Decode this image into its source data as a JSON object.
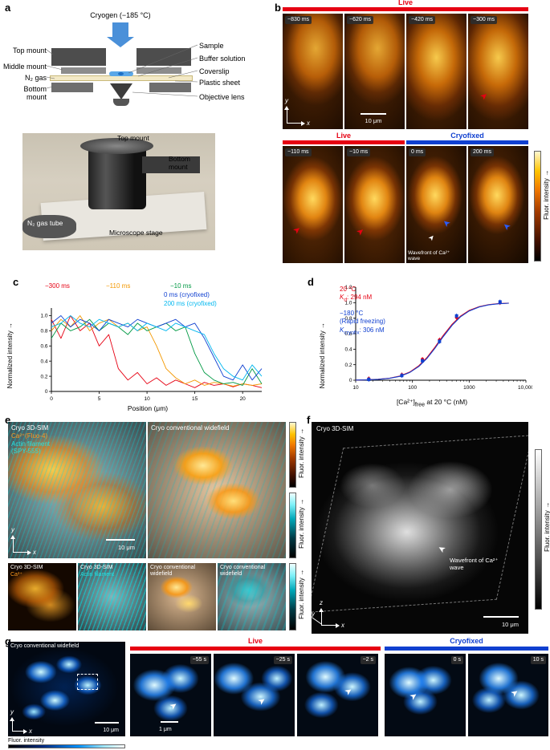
{
  "colors": {
    "live": "#e60012",
    "cryofixed": "#1040d0",
    "ca_orange": "#ff9a1e",
    "actin_cyan": "#28e0e0",
    "cryo_arrow_blue": "#4a90d9"
  },
  "panel_a": {
    "label": "a",
    "cryogen": "Cryogen (−185 °C)",
    "left_labels": [
      "Top mount",
      "Middle mount",
      "N₂ gas",
      "Bottom mount"
    ],
    "right_labels": [
      "Sample",
      "Buffer solution",
      "Coverslip",
      "Plastic sheet"
    ],
    "objective": "Objective lens",
    "photo": {
      "top": "Top mount",
      "bottom": "Bottom mount",
      "n2": "N₂ gas tube",
      "stage": "Microscope stage"
    }
  },
  "panel_b": {
    "label": "b",
    "live": "Live",
    "cryofixed": "Cryofixed",
    "times_row1": [
      "−830 ms",
      "−620 ms",
      "−420 ms",
      "−300 ms"
    ],
    "times_row2": [
      "−110 ms",
      "−10 ms",
      "0 ms",
      "200 ms"
    ],
    "scale": "10 μm",
    "wavefront": "Wavefront of Ca²⁺ wave",
    "colorbar": "Fluor. intensity",
    "ax": {
      "x": "x",
      "y": "y"
    }
  },
  "panel_c": {
    "label": "c"
  },
  "panel_d": {
    "label": "d",
    "red_title": "20 °C",
    "red_k": "K",
    "red_k_sub": "d",
    "red_k_val": ": 294 nM",
    "blue_title": "−180 °C",
    "blue_sub": "(Rapid freezing)",
    "blue_k": "K",
    "blue_k_sub": "cryofix",
    "blue_k_val": ": 306 nM",
    "xlabel_main": "[Ca²⁺]",
    "xlabel_sub": "free",
    "xlabel_end": " at 20 °C (nM)"
  },
  "panel_e": {
    "label": "e",
    "t1_title": "Cryo 3D-SIM",
    "t1_ca": "Ca²⁺(Fluo-4)",
    "t1_actin1": "Actin filament",
    "t1_actin2": "(SPY-555)",
    "t2_title": "Cryo conventional widefield",
    "s1_title": "Cryo 3D-SIM",
    "s1_tag": "Ca²⁺",
    "s2_title": "Cryo 3D-SIM",
    "s2_tag": "Actin filament",
    "s3_title": "Cryo conventional widefield",
    "s4_title": "Cryo conventional widefield",
    "scale": "10 μm",
    "colorbar": "Fluor. intensity",
    "ax": {
      "x": "x",
      "y": "y"
    }
  },
  "panel_f": {
    "label": "f",
    "title": "Cryo 3D-SIM",
    "wavefront": "Wavefront of Ca²⁺ wave",
    "scale": "10 μm",
    "colorbar": "Fluor. intensity",
    "ax": {
      "x": "x",
      "y": "y",
      "z": "z"
    }
  },
  "panel_g": {
    "label": "g",
    "title": "Cryo conventional widefield",
    "live": "Live",
    "cryofixed": "Cryofixed",
    "times": [
      "−55 s",
      "−25 s",
      "−2 s",
      "0 s",
      "10 s"
    ],
    "scale10": "10 μm",
    "scale1": "1 μm",
    "colorbar": "Fluor. intensity",
    "ax": {
      "x": "x",
      "y": "y"
    }
  },
  "chart_data": [
    {
      "type": "line",
      "title": "",
      "xlabel": "Position (μm)",
      "ylabel": "Normalized intensity",
      "xlim": [
        0,
        22
      ],
      "ylim": [
        0,
        1.1
      ],
      "xticks": [
        0,
        5,
        10,
        15,
        20
      ],
      "yticks": [
        0,
        0.2,
        0.4,
        0.6,
        0.8,
        1.0
      ],
      "grid": false,
      "legend_position": "top",
      "x": [
        0,
        1,
        2,
        3,
        4,
        5,
        6,
        7,
        8,
        9,
        10,
        11,
        12,
        13,
        14,
        15,
        16,
        17,
        18,
        19,
        20,
        21,
        22
      ],
      "series": [
        {
          "name": "−300 ms",
          "color": "#e60012",
          "values": [
            0.95,
            0.7,
            1.0,
            0.8,
            0.9,
            0.6,
            0.75,
            0.3,
            0.15,
            0.25,
            0.1,
            0.18,
            0.08,
            0.15,
            0.1,
            0.05,
            0.12,
            0.08,
            0.1,
            0.06,
            0.1,
            0.08,
            0.05
          ]
        },
        {
          "name": "−110 ms",
          "color": "#f39800",
          "values": [
            0.8,
            0.95,
            0.85,
            1.0,
            0.8,
            0.9,
            0.95,
            0.85,
            0.9,
            0.8,
            0.85,
            0.6,
            0.3,
            0.18,
            0.1,
            0.15,
            0.08,
            0.12,
            0.1,
            0.07,
            0.1,
            0.08,
            0.1
          ]
        },
        {
          "name": "−10 ms",
          "color": "#009944",
          "values": [
            0.7,
            0.9,
            0.8,
            0.85,
            0.95,
            0.8,
            0.9,
            0.85,
            0.75,
            0.9,
            0.8,
            0.85,
            0.9,
            0.8,
            0.85,
            0.5,
            0.25,
            0.15,
            0.1,
            0.12,
            0.08,
            0.3,
            0.1
          ]
        },
        {
          "name": "0 ms (cryofixed)",
          "color": "#1040d0",
          "values": [
            0.9,
            1.0,
            0.85,
            0.95,
            0.9,
            0.8,
            0.95,
            0.9,
            0.85,
            0.95,
            0.9,
            0.85,
            0.9,
            0.95,
            0.85,
            0.9,
            0.7,
            0.45,
            0.2,
            0.15,
            0.35,
            0.15,
            0.3
          ]
        },
        {
          "name": "200 ms (cryofixed)",
          "color": "#00b7ef",
          "values": [
            0.85,
            0.9,
            1.0,
            0.9,
            0.85,
            0.95,
            0.9,
            0.85,
            0.9,
            0.8,
            0.9,
            0.85,
            0.8,
            0.9,
            0.85,
            0.8,
            0.75,
            0.5,
            0.3,
            0.2,
            0.15,
            0.35,
            0.2
          ]
        }
      ]
    },
    {
      "type": "scatter",
      "title": "",
      "xlabel": "[Ca²⁺]free at 20 °C (nM)",
      "ylabel": "Normalized intensity",
      "xscale": "log",
      "xlim": [
        10,
        10000
      ],
      "ylim": [
        0,
        1.2
      ],
      "xticks": [
        10,
        100,
        1000,
        10000
      ],
      "xtick_labels": [
        "10",
        "100",
        "1000",
        "10,000"
      ],
      "yticks": [
        0,
        0.2,
        0.4,
        0.6,
        0.8,
        1.0,
        1.2
      ],
      "grid": false,
      "series": [
        {
          "name": "20 °C",
          "kd": "Kd: 294 nM",
          "color": "#e60012",
          "marker": "circle",
          "err": 0.03,
          "points_x": [
            17,
            65,
            150,
            300,
            600,
            3500
          ],
          "points_y": [
            0.02,
            0.07,
            0.27,
            0.52,
            0.81,
            1.0
          ],
          "curve_x": [
            10,
            15,
            25,
            40,
            60,
            90,
            130,
            180,
            250,
            350,
            500,
            700,
            1000,
            1500,
            2200,
            3200,
            5000
          ],
          "curve_y": [
            0.002,
            0.005,
            0.012,
            0.027,
            0.054,
            0.106,
            0.187,
            0.292,
            0.427,
            0.578,
            0.722,
            0.826,
            0.9,
            0.949,
            0.974,
            0.987,
            0.994
          ]
        },
        {
          "name": "−180 °C (Rapid freezing)",
          "kd": "Kcryofix: 306 nM",
          "color": "#1040d0",
          "marker": "square",
          "err": 0.03,
          "points_x": [
            17,
            65,
            150,
            300,
            600,
            3500
          ],
          "points_y": [
            0.01,
            0.06,
            0.25,
            0.5,
            0.83,
            1.01
          ],
          "curve_x": [
            10,
            15,
            25,
            40,
            60,
            90,
            130,
            180,
            250,
            350,
            500,
            700,
            1000,
            1500,
            2200,
            3200,
            5000
          ],
          "curve_y": [
            0.002,
            0.004,
            0.011,
            0.025,
            0.05,
            0.1,
            0.178,
            0.28,
            0.413,
            0.563,
            0.709,
            0.816,
            0.893,
            0.944,
            0.971,
            0.985,
            0.993
          ]
        }
      ]
    }
  ]
}
